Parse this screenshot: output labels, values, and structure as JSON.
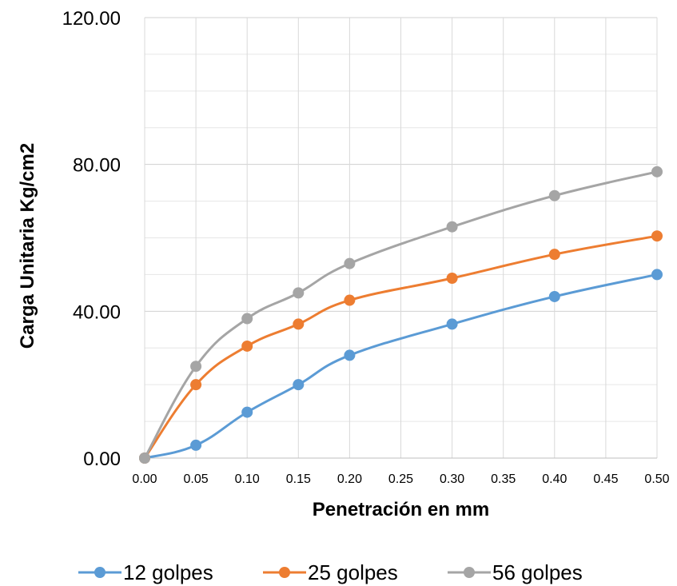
{
  "chart_data": {
    "type": "line",
    "title": "",
    "xlabel": "Penetración en mm",
    "ylabel": "Carga Unitaria Kg/cm2",
    "xlim": [
      0,
      0.5
    ],
    "ylim": [
      0,
      120
    ],
    "x_ticks": [
      "0.00",
      "0.05",
      "0.10",
      "0.15",
      "0.20",
      "0.25",
      "0.30",
      "0.35",
      "0.40",
      "0.45",
      "0.50"
    ],
    "y_ticks": [
      "0.00",
      "40.00",
      "80.00",
      "120.00"
    ],
    "grid": true,
    "legend_position": "bottom",
    "series": [
      {
        "name": "12 golpes",
        "color": "#5B9BD5",
        "x": [
          0,
          0.05,
          0.1,
          0.15,
          0.2,
          0.3,
          0.4,
          0.5
        ],
        "y": [
          0,
          3.5,
          12.5,
          20,
          28,
          36.5,
          44,
          50
        ]
      },
      {
        "name": "25 golpes",
        "color": "#ED7D31",
        "x": [
          0,
          0.05,
          0.1,
          0.15,
          0.2,
          0.3,
          0.4,
          0.5
        ],
        "y": [
          0,
          20,
          30.5,
          36.5,
          43,
          49,
          55.5,
          60.5
        ]
      },
      {
        "name": "56 golpes",
        "color": "#A5A5A5",
        "x": [
          0,
          0.05,
          0.1,
          0.15,
          0.2,
          0.3,
          0.4,
          0.5
        ],
        "y": [
          0,
          25,
          38,
          45,
          53,
          63,
          71.5,
          78
        ]
      }
    ]
  }
}
